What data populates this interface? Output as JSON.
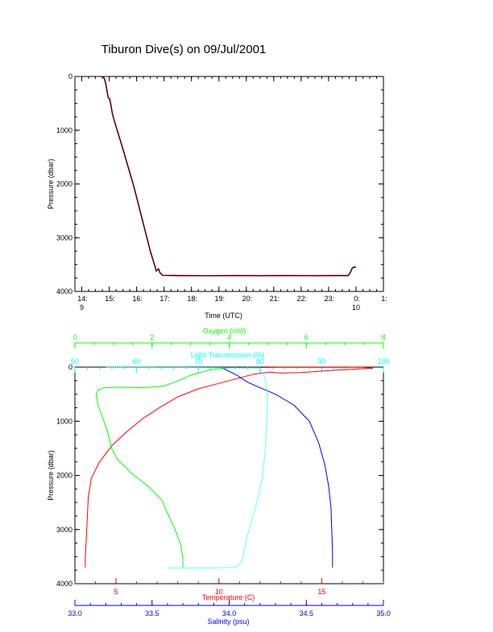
{
  "title": "Tiburon Dive(s) on 09/Jul/2001",
  "colors": {
    "temperature": "#ff0000",
    "salinity": "#0000ff",
    "oxygen": "#00ff00",
    "light": "#00ffff",
    "trace": "#000000",
    "trace_highlight": "#cc0000",
    "axes": "#000000"
  },
  "chart_data": [
    {
      "type": "line",
      "title": "Tiburon Dive(s) on 09/Jul/2001",
      "xlabel": "Time (UTC)",
      "ylabel": "Pressure (dbar)",
      "x_unit": "hours UTC on 09/Jul/2001",
      "xlim": [
        13.75,
        25.0
      ],
      "ylim": [
        4000,
        0
      ],
      "y_ticks": [
        0,
        1000,
        2000,
        3000,
        4000
      ],
      "x_ticks": [
        {
          "value": 14.0,
          "label": "14:",
          "sublabel": "9"
        },
        {
          "value": 15.0,
          "label": "15:",
          "sublabel": ""
        },
        {
          "value": 16.0,
          "label": "16:",
          "sublabel": ""
        },
        {
          "value": 17.0,
          "label": "17:",
          "sublabel": ""
        },
        {
          "value": 18.0,
          "label": "18:",
          "sublabel": ""
        },
        {
          "value": 19.0,
          "label": "19:",
          "sublabel": ""
        },
        {
          "value": 20.0,
          "label": "20:",
          "sublabel": ""
        },
        {
          "value": 21.0,
          "label": "21:",
          "sublabel": ""
        },
        {
          "value": 22.0,
          "label": "22:",
          "sublabel": ""
        },
        {
          "value": 23.0,
          "label": "23:",
          "sublabel": ""
        },
        {
          "value": 24.0,
          "label": "0:",
          "sublabel": "10"
        },
        {
          "value": 25.0,
          "label": "1:",
          "sublabel": ""
        }
      ],
      "series": [
        {
          "color_key": "trace",
          "points": [
            [
              14.78,
              0
            ],
            [
              14.83,
              50
            ],
            [
              14.88,
              150
            ],
            [
              14.93,
              300
            ],
            [
              14.97,
              400
            ],
            [
              15.02,
              420
            ],
            [
              15.07,
              550
            ],
            [
              15.12,
              700
            ],
            [
              15.2,
              850
            ],
            [
              15.35,
              1100
            ],
            [
              15.5,
              1350
            ],
            [
              15.7,
              1700
            ],
            [
              15.9,
              2050
            ],
            [
              16.1,
              2450
            ],
            [
              16.3,
              2850
            ],
            [
              16.5,
              3250
            ],
            [
              16.65,
              3500
            ],
            [
              16.72,
              3620
            ],
            [
              16.8,
              3580
            ],
            [
              16.85,
              3650
            ],
            [
              16.95,
              3700
            ],
            [
              17.5,
              3705
            ],
            [
              18.5,
              3708
            ],
            [
              19.5,
              3705
            ],
            [
              20.5,
              3706
            ],
            [
              21.5,
              3705
            ],
            [
              22.5,
              3706
            ],
            [
              23.2,
              3705
            ],
            [
              23.72,
              3705
            ],
            [
              23.8,
              3640
            ],
            [
              23.87,
              3560
            ],
            [
              23.95,
              3545
            ],
            [
              24.0,
              3550
            ]
          ]
        }
      ]
    },
    {
      "type": "line",
      "ylabel": "Pressure (dbar)",
      "ylim": [
        4000,
        0
      ],
      "y_ticks": [
        0,
        1000,
        2000,
        3000,
        4000
      ],
      "axes": {
        "temperature": {
          "label": "Temperature (C)",
          "range": [
            3,
            18
          ],
          "ticks": [
            5,
            10,
            15
          ],
          "position": "bottom"
        },
        "salinity": {
          "label": "Salinity (psu)",
          "range": [
            33.0,
            35.0
          ],
          "ticks": [
            33.0,
            33.5,
            34.0,
            34.5,
            35.0
          ],
          "tick_labels": [
            "33.0",
            "33.5",
            "34.0",
            "34.5",
            "35.0"
          ],
          "position": "bottom"
        },
        "oxygen": {
          "label": "Oxygen (ml/l)",
          "range": [
            0,
            8
          ],
          "ticks": [
            0,
            2,
            4,
            6,
            8
          ],
          "position": "top"
        },
        "light": {
          "label": "Light Transmission (%)",
          "range": [
            50,
            100
          ],
          "ticks": [
            50,
            60,
            70,
            80,
            90,
            100
          ],
          "position": "top"
        }
      },
      "series": [
        {
          "axis": "temperature",
          "color_key": "temperature",
          "points": [
            [
              3.5,
              3700
            ],
            [
              3.5,
              3550
            ],
            [
              3.55,
              3200
            ],
            [
              3.6,
              2800
            ],
            [
              3.65,
              2400
            ],
            [
              3.8,
              2050
            ],
            [
              4.2,
              1750
            ],
            [
              4.8,
              1450
            ],
            [
              5.5,
              1200
            ],
            [
              6.3,
              950
            ],
            [
              7.1,
              750
            ],
            [
              8.0,
              550
            ],
            [
              9.0,
              400
            ],
            [
              10.0,
              300
            ],
            [
              10.8,
              220
            ],
            [
              11.7,
              130
            ],
            [
              12.5,
              90
            ],
            [
              13.0,
              110
            ],
            [
              14.0,
              100
            ],
            [
              15.5,
              60
            ],
            [
              17.5,
              20
            ],
            [
              17.0,
              5
            ],
            [
              13.0,
              3
            ],
            [
              12.0,
              8
            ]
          ]
        },
        {
          "axis": "salinity",
          "color_key": "salinity",
          "points": [
            [
              34.67,
              3700
            ],
            [
              34.67,
              3400
            ],
            [
              34.665,
              3000
            ],
            [
              34.66,
              2600
            ],
            [
              34.645,
              2200
            ],
            [
              34.62,
              1800
            ],
            [
              34.58,
              1400
            ],
            [
              34.52,
              1000
            ],
            [
              34.42,
              700
            ],
            [
              34.3,
              500
            ],
            [
              34.2,
              380
            ],
            [
              34.12,
              280
            ],
            [
              34.05,
              150
            ],
            [
              33.98,
              50
            ],
            [
              33.95,
              10
            ]
          ]
        },
        {
          "axis": "oxygen",
          "color_key": "oxygen",
          "points": [
            [
              2.8,
              3700
            ],
            [
              2.8,
              3550
            ],
            [
              2.75,
              3300
            ],
            [
              2.6,
              3000
            ],
            [
              2.4,
              2700
            ],
            [
              2.25,
              2450
            ],
            [
              1.9,
              2200
            ],
            [
              1.45,
              1950
            ],
            [
              1.1,
              1700
            ],
            [
              0.95,
              1500
            ],
            [
              0.85,
              1200
            ],
            [
              0.7,
              900
            ],
            [
              0.6,
              700
            ],
            [
              0.55,
              500
            ],
            [
              0.6,
              430
            ],
            [
              0.75,
              380
            ],
            [
              1.2,
              370
            ],
            [
              1.8,
              380
            ],
            [
              2.3,
              350
            ],
            [
              2.7,
              250
            ],
            [
              3.0,
              150
            ],
            [
              3.5,
              50
            ],
            [
              4.0,
              10
            ]
          ]
        },
        {
          "axis": "light",
          "color_key": "light",
          "points": [
            [
              65,
              3710
            ],
            [
              72,
              3710
            ],
            [
              76,
              3700
            ],
            [
              77,
              3600
            ],
            [
              77.6,
              3300
            ],
            [
              78.2,
              3000
            ],
            [
              79.0,
              2700
            ],
            [
              79.8,
              2350
            ],
            [
              80.4,
              2000
            ],
            [
              80.8,
              1600
            ],
            [
              81.0,
              1200
            ],
            [
              81.2,
              800
            ],
            [
              81.2,
              500
            ],
            [
              80.8,
              200
            ],
            [
              80.0,
              20
            ],
            [
              68,
              5
            ],
            [
              55,
              0
            ]
          ]
        }
      ]
    }
  ]
}
